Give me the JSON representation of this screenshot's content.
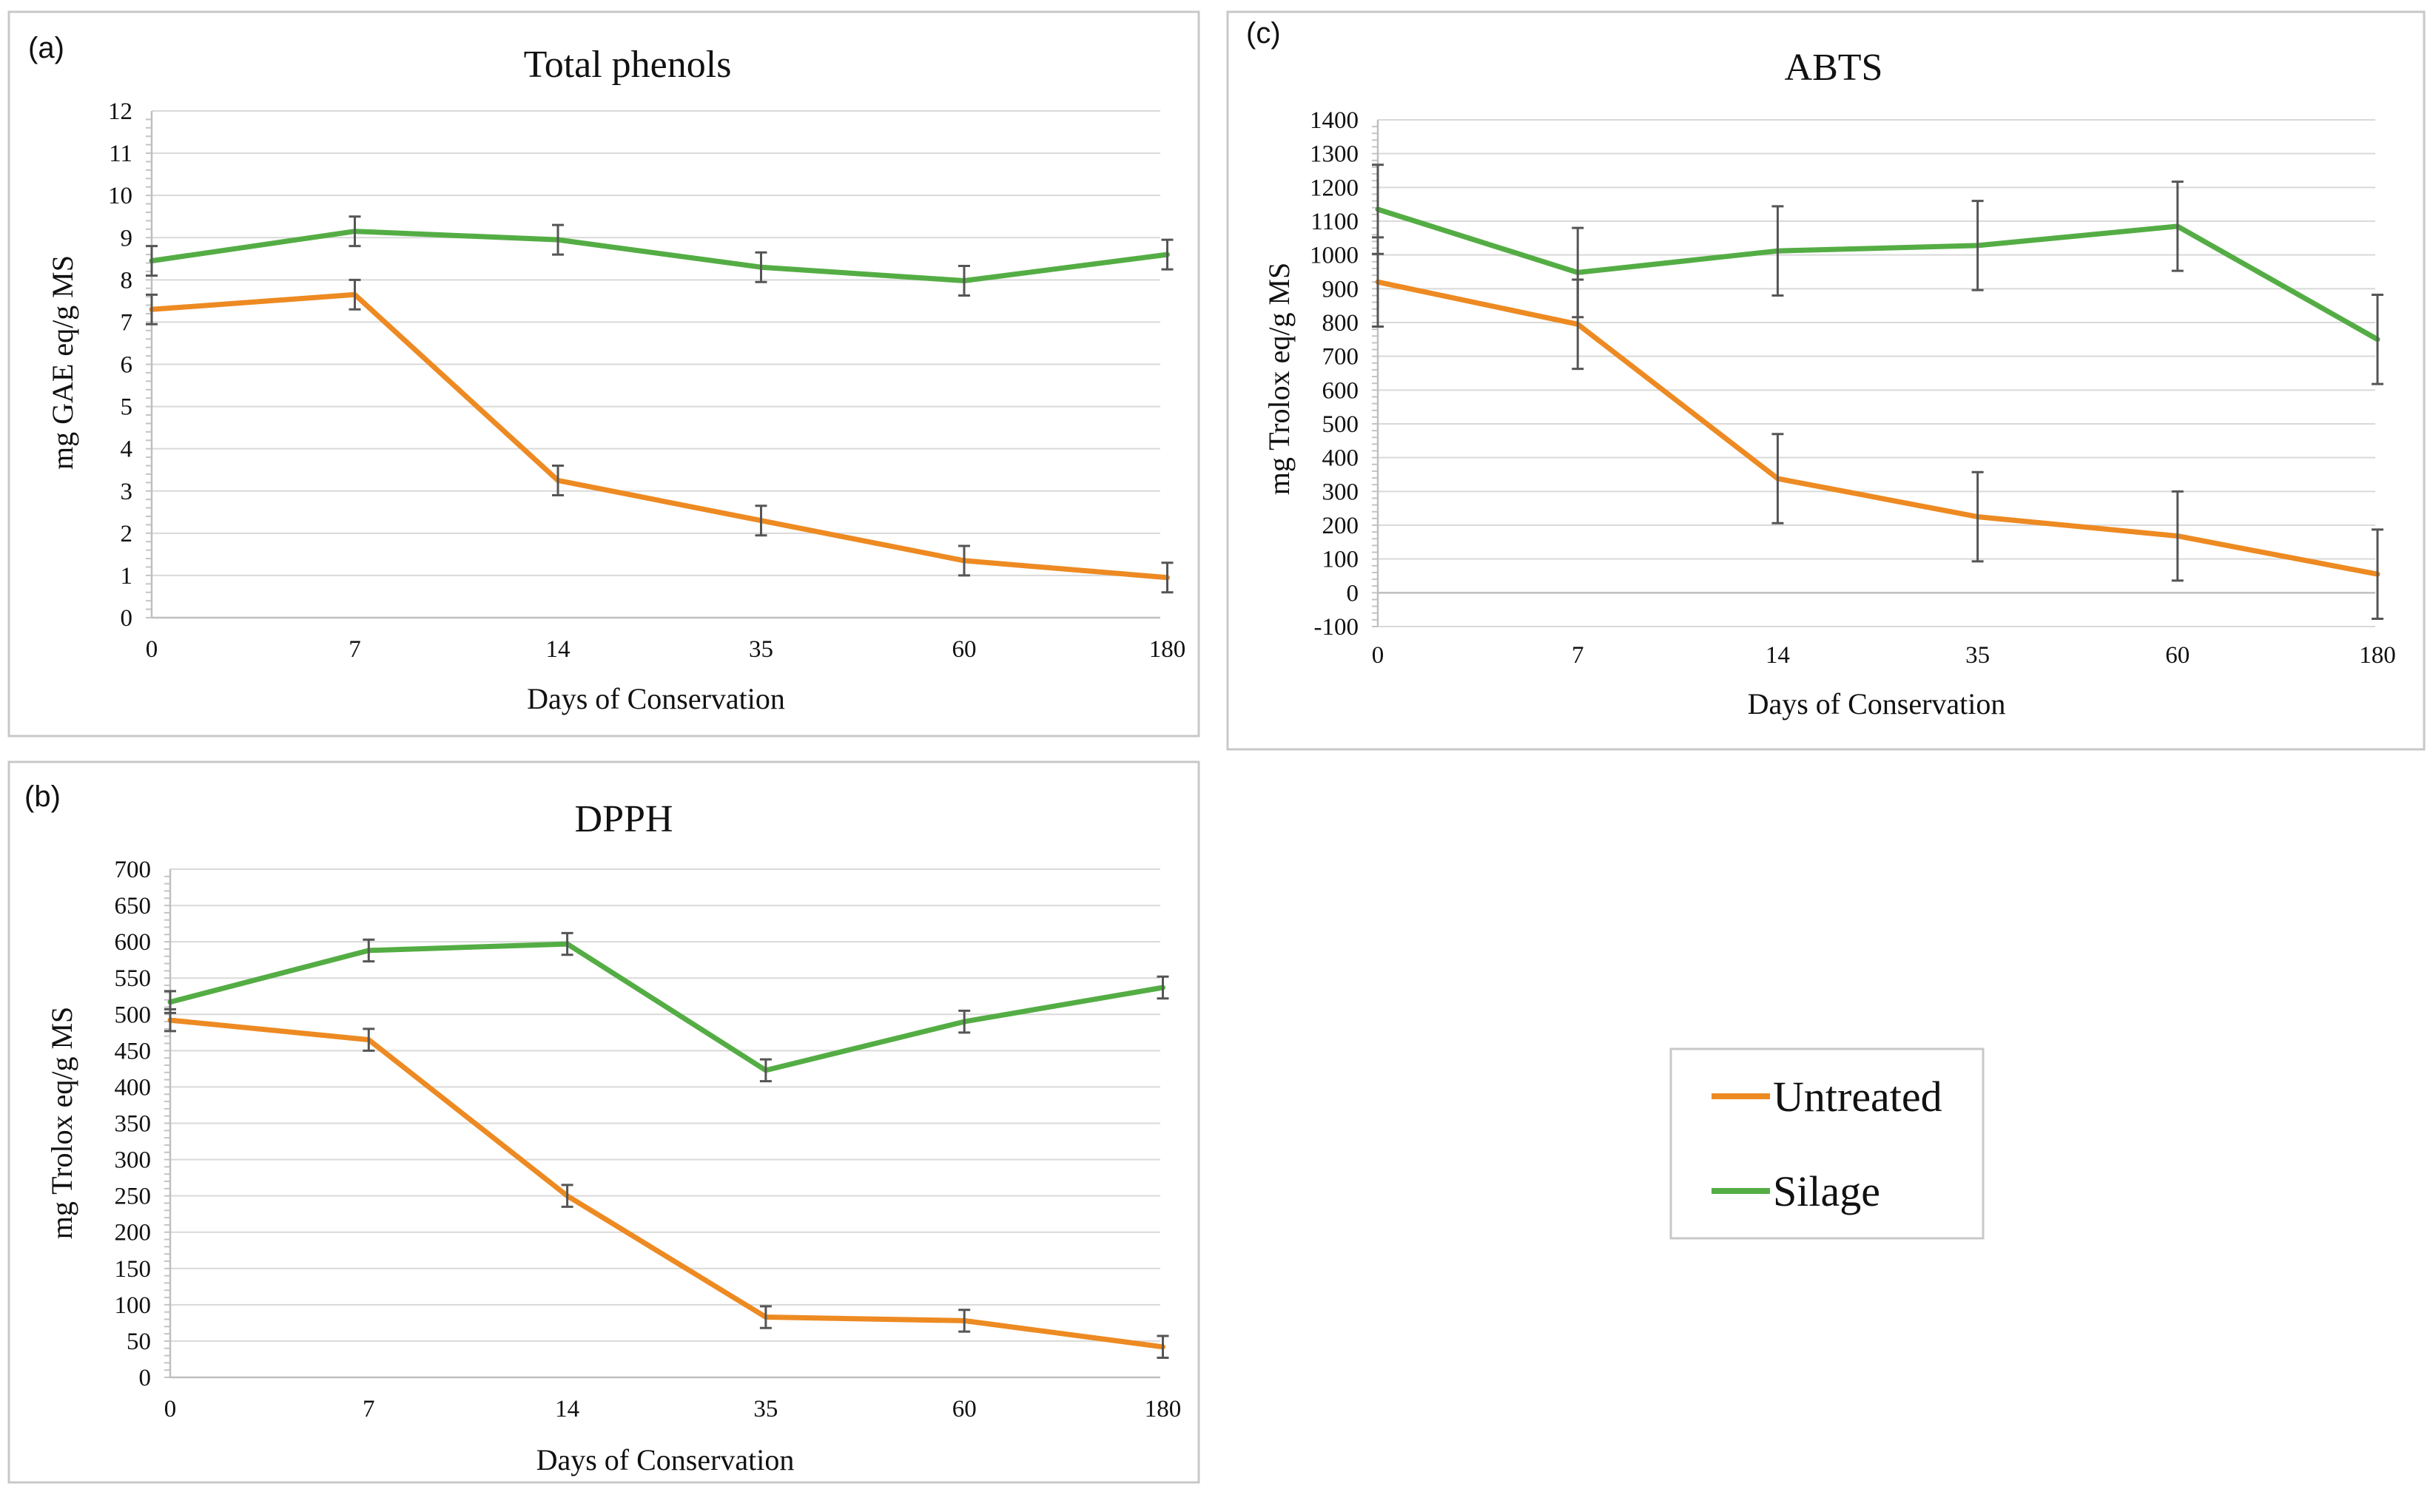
{
  "legend": {
    "entries": [
      {
        "name": "Untreated",
        "color": "#ed8a22"
      },
      {
        "name": "Silage",
        "color": "#54ad44"
      }
    ]
  },
  "chart_data": [
    {
      "panel": "(a)",
      "type": "line",
      "title": "Total phenols",
      "xlabel": "Days of Conservation",
      "ylabel": "mg GAE eq/g  MS",
      "categories": [
        "0",
        "7",
        "14",
        "35",
        "60",
        "180"
      ],
      "ylim": [
        0,
        12
      ],
      "ytick_step": 1,
      "grid": true,
      "series": [
        {
          "name": "Untreated",
          "color": "#ed8a22",
          "values": [
            7.3,
            7.65,
            3.25,
            2.3,
            1.35,
            0.95
          ],
          "errors": [
            0.35,
            0.35,
            0.35,
            0.35,
            0.35,
            0.35
          ]
        },
        {
          "name": "Silage",
          "color": "#54ad44",
          "values": [
            8.45,
            9.15,
            8.95,
            8.3,
            7.98,
            8.6
          ],
          "errors": [
            0.35,
            0.35,
            0.35,
            0.35,
            0.35,
            0.35
          ]
        }
      ]
    },
    {
      "panel": "(b)",
      "type": "line",
      "title": "DPPH",
      "xlabel": "Days of Conservation",
      "ylabel": "mg Trolox eq/g  MS",
      "categories": [
        "0",
        "7",
        "14",
        "35",
        "60",
        "180"
      ],
      "ylim": [
        0,
        700
      ],
      "ytick_step": 50,
      "grid": true,
      "series": [
        {
          "name": "Untreated",
          "color": "#ed8a22",
          "values": [
            492,
            465,
            250,
            83,
            78,
            42
          ],
          "errors": [
            15,
            15,
            15,
            15,
            15,
            15
          ]
        },
        {
          "name": "Silage",
          "color": "#54ad44",
          "values": [
            517,
            588,
            597,
            423,
            490,
            537
          ],
          "errors": [
            15,
            15,
            15,
            15,
            15,
            15
          ]
        }
      ]
    },
    {
      "panel": "(c)",
      "type": "line",
      "title": "ABTS",
      "xlabel": "Days of Conservation",
      "ylabel": "mg Trolox eq/g  MS",
      "categories": [
        "0",
        "7",
        "14",
        "35",
        "60",
        "180"
      ],
      "ylim": [
        -100,
        1400
      ],
      "ytick_step": 100,
      "grid": true,
      "series": [
        {
          "name": "Untreated",
          "color": "#ed8a22",
          "values": [
            920,
            795,
            338,
            225,
            168,
            55
          ],
          "errors": [
            132,
            132,
            132,
            132,
            132,
            132
          ]
        },
        {
          "name": "Silage",
          "color": "#54ad44",
          "values": [
            1135,
            948,
            1012,
            1028,
            1085,
            750
          ],
          "errors": [
            132,
            132,
            132,
            132,
            132,
            132
          ]
        }
      ]
    }
  ]
}
